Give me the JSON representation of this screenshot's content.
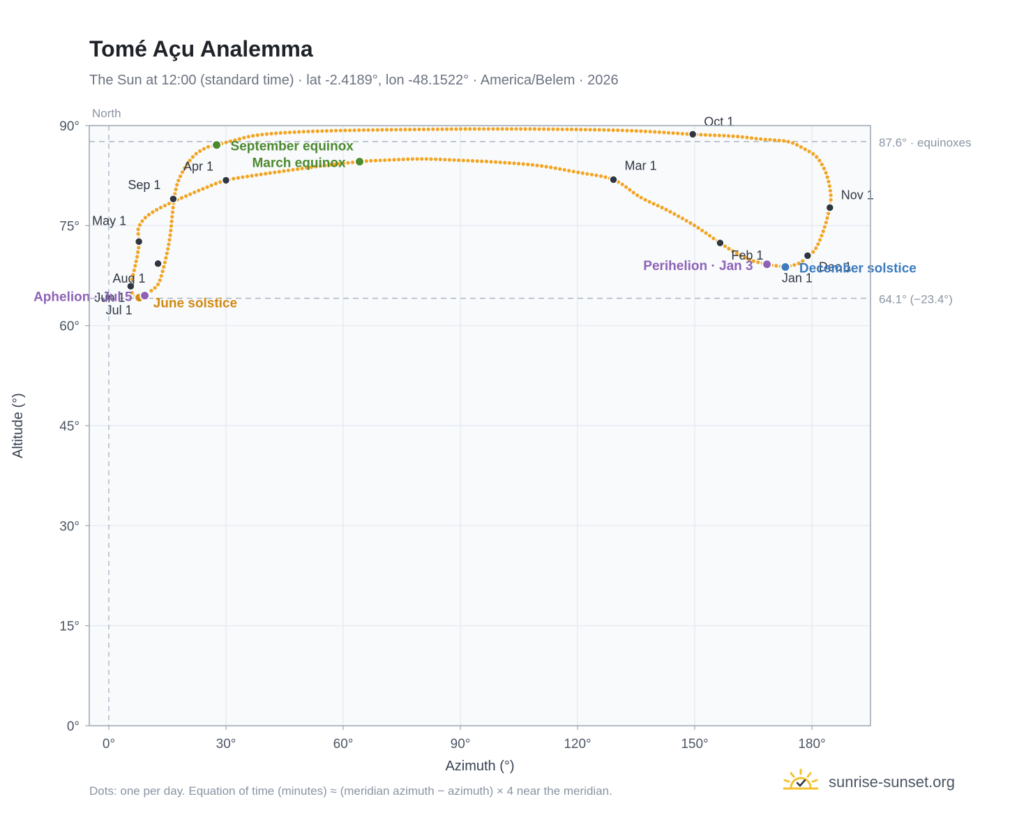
{
  "header": {
    "title": "Tomé Açu Analemma",
    "subtitle": "The Sun at 12:00 (standard time) · lat -2.4189°, lon -48.1522° · America/Belem · 2026"
  },
  "footer": {
    "note": "Dots: one per day. Equation of time (minutes) ≈ (meridian azimuth − azimuth) × 4 near the meridian.",
    "brand": "sunrise-sunset.org"
  },
  "colors": {
    "path": "#f2a522",
    "month_marker": "#2f3640",
    "equinox": "#4d8a2e",
    "june_solstice": "#d18a12",
    "december_solstice": "#3d7cc0",
    "apsis": "#8e63b6",
    "reference_line": "#aab4c2",
    "plot_bg": "#f8fafc"
  },
  "chart_data": {
    "type": "scatter",
    "title": "Tomé Açu Analemma",
    "xlabel": "Azimuth (°)",
    "ylabel": "Altitude (°)",
    "xlim": [
      -5,
      195
    ],
    "ylim": [
      0,
      90
    ],
    "xticks": [
      "0°",
      "30°",
      "60°",
      "90°",
      "120°",
      "150°",
      "180°"
    ],
    "yticks": [
      "0°",
      "15°",
      "30°",
      "45°",
      "60°",
      "75°",
      "90°"
    ],
    "grid": true,
    "north_label": "North",
    "north_azimuth": 0,
    "reference_lines": [
      {
        "y": 87.6,
        "label": "87.6° · equinoxes"
      },
      {
        "y": 64.1,
        "label": "64.1° (−23.4°)"
      }
    ],
    "series": [
      {
        "points": [
          [
            173.2,
            68.8
          ],
          [
            168.5,
            69.2
          ],
          [
            164,
            69.9
          ],
          [
            160,
            71.1
          ],
          [
            156.5,
            72.4
          ],
          [
            150,
            75.0
          ],
          [
            143,
            77.3
          ],
          [
            136,
            79.3
          ],
          [
            129.2,
            81.9
          ],
          [
            120,
            83.0
          ],
          [
            110,
            84.0
          ],
          [
            100,
            84.5
          ],
          [
            90,
            84.8
          ],
          [
            80,
            85.0
          ],
          [
            70,
            84.8
          ],
          [
            64.2,
            84.6
          ],
          [
            55,
            84.0
          ],
          [
            45,
            83.2
          ],
          [
            38,
            82.6
          ],
          [
            30,
            81.8
          ],
          [
            24,
            80.5
          ],
          [
            20,
            79.5
          ],
          [
            16.5,
            78.6
          ],
          [
            12,
            77.3
          ],
          [
            9,
            76.0
          ],
          [
            7.5,
            74.4
          ],
          [
            7.8,
            72.6
          ],
          [
            7.2,
            70.2
          ],
          [
            6.2,
            67.6
          ],
          [
            5.6,
            65.9
          ],
          [
            5.8,
            65.1
          ],
          [
            6.6,
            64.5
          ],
          [
            7.8,
            64.2
          ],
          [
            9.2,
            64.5
          ],
          [
            10.8,
            65.2
          ],
          [
            12.6,
            66.2
          ],
          [
            13.7,
            68.0
          ],
          [
            14.8,
            70.6
          ],
          [
            15.7,
            73.5
          ],
          [
            16.2,
            76.3
          ],
          [
            16.7,
            78.9
          ],
          [
            17.6,
            81.4
          ],
          [
            19.5,
            83.7
          ],
          [
            22,
            85.6
          ],
          [
            25,
            86.7
          ],
          [
            27.6,
            87.1
          ],
          [
            32.8,
            87.9
          ],
          [
            37.2,
            88.5
          ],
          [
            44,
            88.9
          ],
          [
            55.4,
            89.2
          ],
          [
            74.2,
            89.4
          ],
          [
            102.4,
            89.5
          ],
          [
            130.6,
            89.3
          ],
          [
            149.5,
            88.7
          ],
          [
            160.2,
            88.4
          ],
          [
            166.5,
            88.0
          ],
          [
            171,
            87.8
          ],
          [
            174.6,
            87.5
          ],
          [
            178.1,
            86.5
          ],
          [
            181.2,
            85.3
          ],
          [
            183.6,
            82.9
          ],
          [
            184.8,
            79.8
          ],
          [
            184.5,
            77.6
          ],
          [
            183.1,
            74.5
          ],
          [
            181.1,
            71.7
          ],
          [
            178.9,
            70.3
          ],
          [
            176.5,
            69.3
          ],
          [
            173.2,
            68.8
          ]
        ]
      }
    ],
    "month_markers": [
      {
        "label": "Jan 1",
        "x": 173.2,
        "y": 68.8
      },
      {
        "label": "Feb 1",
        "x": 156.5,
        "y": 72.4
      },
      {
        "label": "Mar 1",
        "x": 129.2,
        "y": 81.9
      },
      {
        "label": "Apr 1",
        "x": 30.0,
        "y": 81.8
      },
      {
        "label": "May 1",
        "x": 7.7,
        "y": 72.6
      },
      {
        "label": "Jun 1",
        "x": 5.6,
        "y": 65.9
      },
      {
        "label": "Jul 1",
        "x": 7.8,
        "y": 64.2
      },
      {
        "label": "Aug 1",
        "x": 12.6,
        "y": 69.3
      },
      {
        "label": "Sep 1",
        "x": 16.5,
        "y": 79.0
      },
      {
        "label": "Oct 1",
        "x": 149.5,
        "y": 88.7
      },
      {
        "label": "Nov 1",
        "x": 184.6,
        "y": 77.7
      },
      {
        "label": "Dec 1",
        "x": 178.9,
        "y": 70.5
      }
    ],
    "events": [
      {
        "label": "September equinox",
        "x": 27.6,
        "y": 87.1,
        "kind": "equinox"
      },
      {
        "label": "March equinox",
        "x": 64.2,
        "y": 84.6,
        "kind": "equinox"
      },
      {
        "label": "June solstice",
        "x": 7.8,
        "y": 64.2,
        "kind": "june_solstice"
      },
      {
        "label": "December solstice",
        "x": 173.2,
        "y": 68.8,
        "kind": "december_solstice"
      },
      {
        "label": "Aphelion · Jul 5",
        "x": 9.2,
        "y": 64.5,
        "kind": "apsis"
      },
      {
        "label": "Perihelion · Jan 3",
        "x": 168.5,
        "y": 69.2,
        "kind": "apsis"
      }
    ]
  }
}
